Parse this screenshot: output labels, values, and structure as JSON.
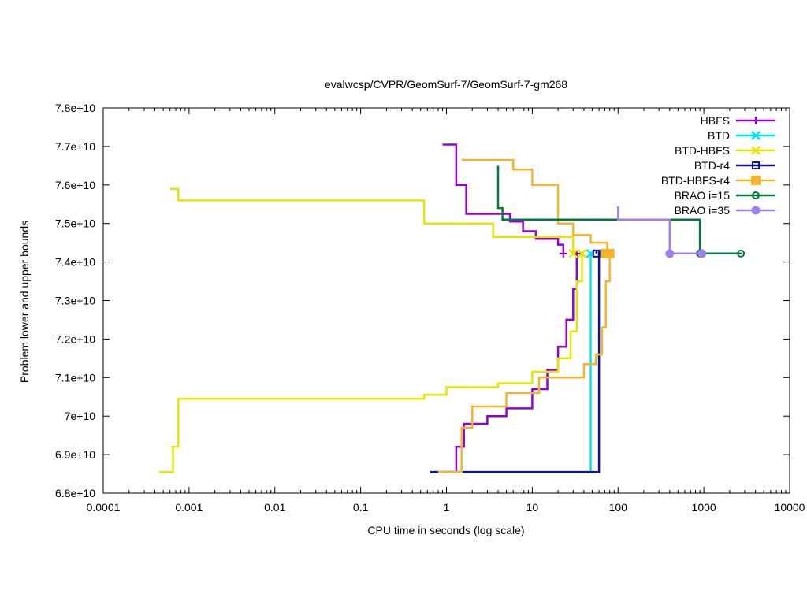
{
  "chart_data": {
    "type": "line",
    "title": "evalwcsp/CVPR/GeomSurf-7/GeomSurf-7-gm268",
    "xlabel": "CPU time in seconds (log scale)",
    "ylabel": "Problem lower and upper bounds",
    "x_scale": "log",
    "xlim": [
      0.0001,
      10000
    ],
    "ylim": [
      68000000000,
      78000000000
    ],
    "x_ticks": [
      0.0001,
      0.001,
      0.01,
      0.1,
      1,
      10,
      100,
      1000,
      10000
    ],
    "x_tick_labels": [
      "0.0001",
      "0.001",
      "0.01",
      "0.1",
      "1",
      "10",
      "100",
      "1000",
      "10000"
    ],
    "y_ticks": [
      68000000000,
      69000000000,
      70000000000,
      71000000000,
      72000000000,
      73000000000,
      74000000000,
      75000000000,
      76000000000,
      77000000000,
      78000000000
    ],
    "y_tick_labels": [
      "6.8e+10",
      "6.9e+10",
      "7e+10",
      "7.1e+10",
      "7.2e+10",
      "7.3e+10",
      "7.4e+10",
      "7.5e+10",
      "7.6e+10",
      "7.7e+10",
      "7.8e+10"
    ],
    "grid": false,
    "legend_position": "top-right",
    "series": [
      {
        "name": "HBFS",
        "color": "#9400d3",
        "marker": "plus",
        "upper": [
          [
            0.9,
            77050000000
          ],
          [
            1.3,
            76000000000
          ],
          [
            1.7,
            75250000000
          ],
          [
            5.5,
            75050000000
          ],
          [
            7.8,
            74800000000
          ],
          [
            11,
            74600000000
          ],
          [
            20,
            74450000000
          ],
          [
            23,
            74220000000
          ]
        ],
        "lower": [
          [
            1.0,
            68550000000
          ],
          [
            1.3,
            69200000000
          ],
          [
            1.6,
            69800000000
          ],
          [
            3.0,
            70000000000
          ],
          [
            5.0,
            70200000000
          ],
          [
            10,
            70700000000
          ],
          [
            15,
            71200000000
          ],
          [
            20,
            71800000000
          ],
          [
            25,
            72500000000
          ],
          [
            30,
            73300000000
          ],
          [
            33,
            74220000000
          ]
        ],
        "marker_points": [
          [
            23,
            74220000000
          ],
          [
            33,
            74220000000
          ]
        ]
      },
      {
        "name": "BTD",
        "color": "#00e5ee",
        "marker": "x",
        "upper": [
          [
            48,
            74220000000
          ]
        ],
        "lower": [
          [
            0.65,
            68550000000
          ],
          [
            48,
            68550000000
          ],
          [
            48,
            74220000000
          ]
        ],
        "marker_points": [
          [
            48,
            74220000000
          ]
        ]
      },
      {
        "name": "BTD-HBFS",
        "color": "#e5e500",
        "marker": "x",
        "upper": [
          [
            0.0006,
            75900000000
          ],
          [
            0.00075,
            75600000000
          ],
          [
            0.55,
            75000000000
          ],
          [
            3.5,
            74650000000
          ],
          [
            30,
            74500000000
          ],
          [
            30,
            74220000000
          ]
        ],
        "lower": [
          [
            0.00045,
            68550000000
          ],
          [
            0.00065,
            69200000000
          ],
          [
            0.00075,
            70450000000
          ],
          [
            0.55,
            70550000000
          ],
          [
            1.0,
            70750000000
          ],
          [
            4.0,
            70850000000
          ],
          [
            10,
            71150000000
          ],
          [
            20,
            71500000000
          ],
          [
            28,
            72200000000
          ],
          [
            33,
            73500000000
          ],
          [
            38,
            74220000000
          ]
        ],
        "marker_points": [
          [
            30,
            74220000000
          ],
          [
            38,
            74220000000
          ]
        ]
      },
      {
        "name": "BTD-r4",
        "color": "#1010a0",
        "marker": "square",
        "upper": [
          [
            56,
            74300000000
          ],
          [
            56,
            74220000000
          ]
        ],
        "lower": [
          [
            0.65,
            68550000000
          ],
          [
            60,
            68550000000
          ],
          [
            60,
            74300000000
          ]
        ],
        "marker_points": [
          [
            56,
            74220000000
          ]
        ]
      },
      {
        "name": "BTD-HBFS-r4",
        "color": "#f5b52b",
        "marker": "filled-square",
        "upper": [
          [
            1.5,
            76650000000
          ],
          [
            6.0,
            76400000000
          ],
          [
            10,
            76000000000
          ],
          [
            20,
            75000000000
          ],
          [
            30,
            74700000000
          ],
          [
            48,
            74500000000
          ],
          [
            75,
            74220000000
          ]
        ],
        "lower": [
          [
            0.8,
            68550000000
          ],
          [
            1.5,
            69700000000
          ],
          [
            2.0,
            70250000000
          ],
          [
            5.0,
            70600000000
          ],
          [
            12,
            71000000000
          ],
          [
            40,
            71350000000
          ],
          [
            55,
            71600000000
          ],
          [
            65,
            72300000000
          ],
          [
            72,
            73500000000
          ],
          [
            80,
            74220000000
          ]
        ],
        "marker_points": [
          [
            72,
            74220000000
          ],
          [
            80,
            74220000000
          ]
        ]
      },
      {
        "name": "BRAO i=15",
        "color": "#007a3d",
        "marker": "circle-dot",
        "upper": [
          [
            4.0,
            76500000000
          ],
          [
            4.0,
            75400000000
          ],
          [
            4.5,
            75100000000
          ],
          [
            900,
            75100000000
          ],
          [
            900,
            74220000000
          ],
          [
            2700,
            74220000000
          ]
        ],
        "lower": [],
        "marker_points": [
          [
            900,
            74220000000
          ],
          [
            2700,
            74220000000
          ]
        ]
      },
      {
        "name": "BRAO i=35",
        "color": "#a080f0",
        "marker": "filled-circle",
        "upper": [
          [
            100,
            75450000000
          ],
          [
            100,
            75100000000
          ],
          [
            400,
            75100000000
          ],
          [
            400,
            74220000000
          ],
          [
            950,
            74220000000
          ]
        ],
        "lower": [],
        "marker_points": [
          [
            400,
            74220000000
          ],
          [
            950,
            74220000000
          ]
        ]
      }
    ]
  }
}
